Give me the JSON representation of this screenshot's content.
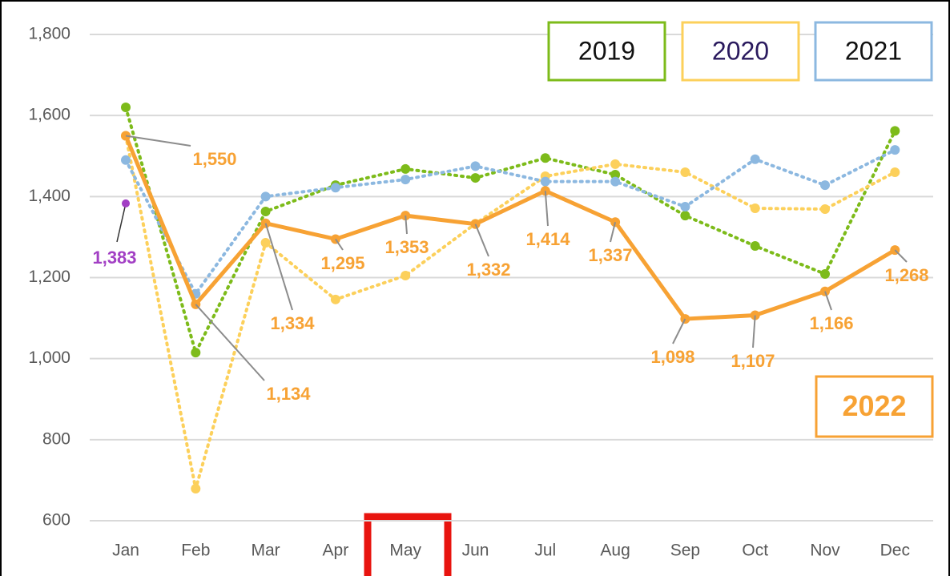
{
  "chart_data": {
    "type": "line",
    "categories": [
      "Jan",
      "Feb",
      "Mar",
      "Apr",
      "May",
      "Jun",
      "Jul",
      "Aug",
      "Sep",
      "Oct",
      "Nov",
      "Dec"
    ],
    "ylim": [
      600,
      1800
    ],
    "yticks": [
      600,
      {
        "value": 800,
        "label": "800"
      },
      {
        "value": 1000,
        "label": "1,000"
      },
      {
        "value": 1200,
        "label": "1,200"
      },
      {
        "value": 1400,
        "label": "1,400"
      },
      {
        "value": 1600,
        "label": "1,600"
      },
      {
        "value": 1800,
        "label": "1,800"
      }
    ],
    "grid": true,
    "series": [
      {
        "name": "2019",
        "color": "#7dbb1a",
        "line_style": "dotted",
        "values": [
          1620,
          1015,
          1363,
          1428,
          1468,
          1446,
          1495,
          1454,
          1353,
          1278,
          1209,
          1562
        ]
      },
      {
        "name": "2020",
        "color": "#fcd05b",
        "line_style": "dotted",
        "values": [
          1550,
          679,
          1286,
          1146,
          1205,
          1333,
          1450,
          1480,
          1460,
          1371,
          1369,
          1460
        ]
      },
      {
        "name": "2021",
        "color": "#8cb8e0",
        "line_style": "dotted",
        "values": [
          1490,
          1160,
          1400,
          1422,
          1442,
          1475,
          1437,
          1437,
          1375,
          1492,
          1428,
          1515
        ]
      },
      {
        "name": "2022",
        "color": "#f7a234",
        "line_style": "solid",
        "values": [
          1550,
          1134,
          1334,
          1295,
          1353,
          1332,
          1414,
          1337,
          1098,
          1107,
          1166,
          1268
        ],
        "value_labels": [
          "1,550",
          "1,134",
          "1,334",
          "1,295",
          "1,353",
          "1,332",
          "1,414",
          "1,337",
          "1,098",
          "1,107",
          "1,166",
          "1,268"
        ]
      }
    ],
    "annotation": {
      "category": "Jan",
      "value": 1383,
      "label": "1,383",
      "color": "#a23fc4"
    }
  }
}
